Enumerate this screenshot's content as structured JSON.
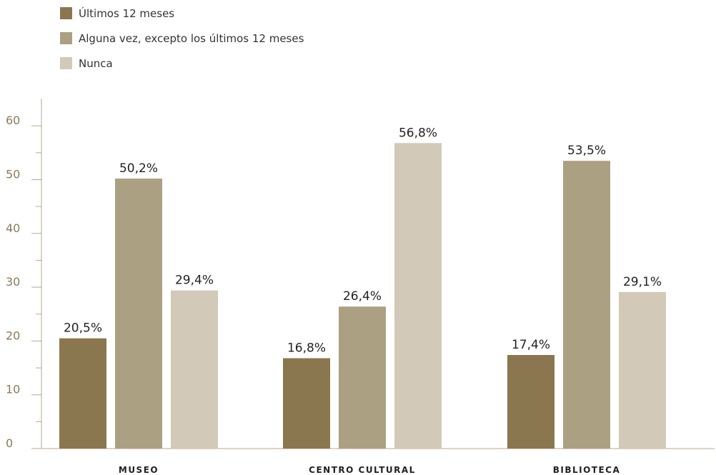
{
  "chart_data": {
    "type": "bar",
    "categories": [
      "MUSEO",
      "CENTRO CULTURAL",
      "BIBLIOTECA"
    ],
    "series": [
      {
        "name": "Últimos 12 meses",
        "values": [
          20.5,
          16.8,
          17.4
        ],
        "labels": [
          "20,5%",
          "16,8%",
          "17,4%"
        ],
        "color": "#8a774f"
      },
      {
        "name": "Alguna vez, excepto los últimos 12 meses",
        "values": [
          50.2,
          26.4,
          53.5
        ],
        "labels": [
          "50,2%",
          "26,4%",
          "53,5%"
        ],
        "color": "#aca083"
      },
      {
        "name": "Nunca",
        "values": [
          29.4,
          56.8,
          29.1
        ],
        "labels": [
          "29,4%",
          "56,8%",
          "29,1%"
        ],
        "color": "#d2c9b8"
      }
    ],
    "title": "",
    "xlabel": "",
    "ylabel": "",
    "ylim": [
      0,
      60
    ],
    "yticks": [
      "0",
      "10",
      "20",
      "30",
      "40",
      "50",
      "60"
    ],
    "grid": false,
    "legend_position": "top-left",
    "axis_color": "#b8a98a"
  }
}
